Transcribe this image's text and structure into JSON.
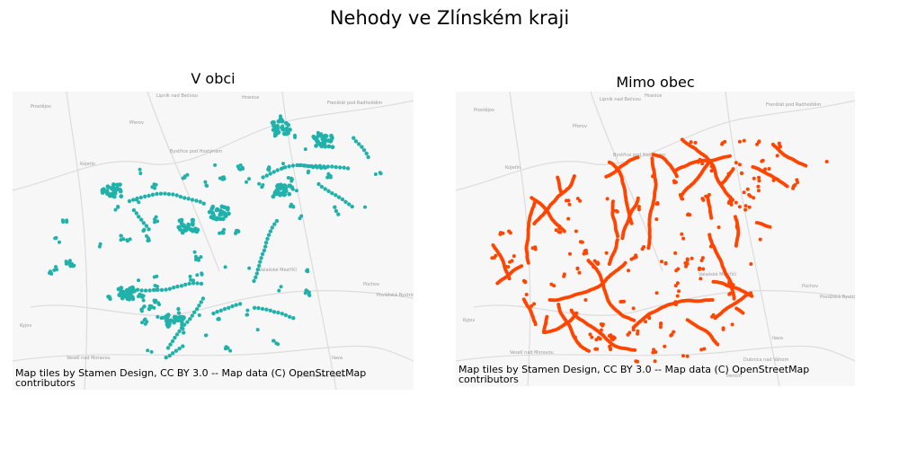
{
  "title": "Nehody ve Zlínském kraji",
  "panels": [
    {
      "title": "V obci",
      "color": "#20b2aa",
      "attribution": "Map tiles by Stamen Design, CC BY 3.0 -- Map data (C) OpenStreetMap contributors"
    },
    {
      "title": "Mimo obec",
      "color": "#ff4500",
      "attribution": "Map tiles by Stamen Design, CC BY 3.0 -- Map data (C) OpenStreetMap contributors"
    }
  ],
  "basemap_labels": [
    "Prostějov",
    "Lipník nad Bečvou",
    "Hranice",
    "Frenštát pod Radhoštěm",
    "Přerov",
    "Kojetín",
    "Bystřice pod Hostýnem",
    "Valašské Meziříčí",
    "Vsetín",
    "Púchov",
    "Povážská Bystrica",
    "Kyjov",
    "Veselí nad Moravou",
    "Bojkovice",
    "Dubnica nad Váhom",
    "Ilava",
    "Trenčín"
  ]
}
